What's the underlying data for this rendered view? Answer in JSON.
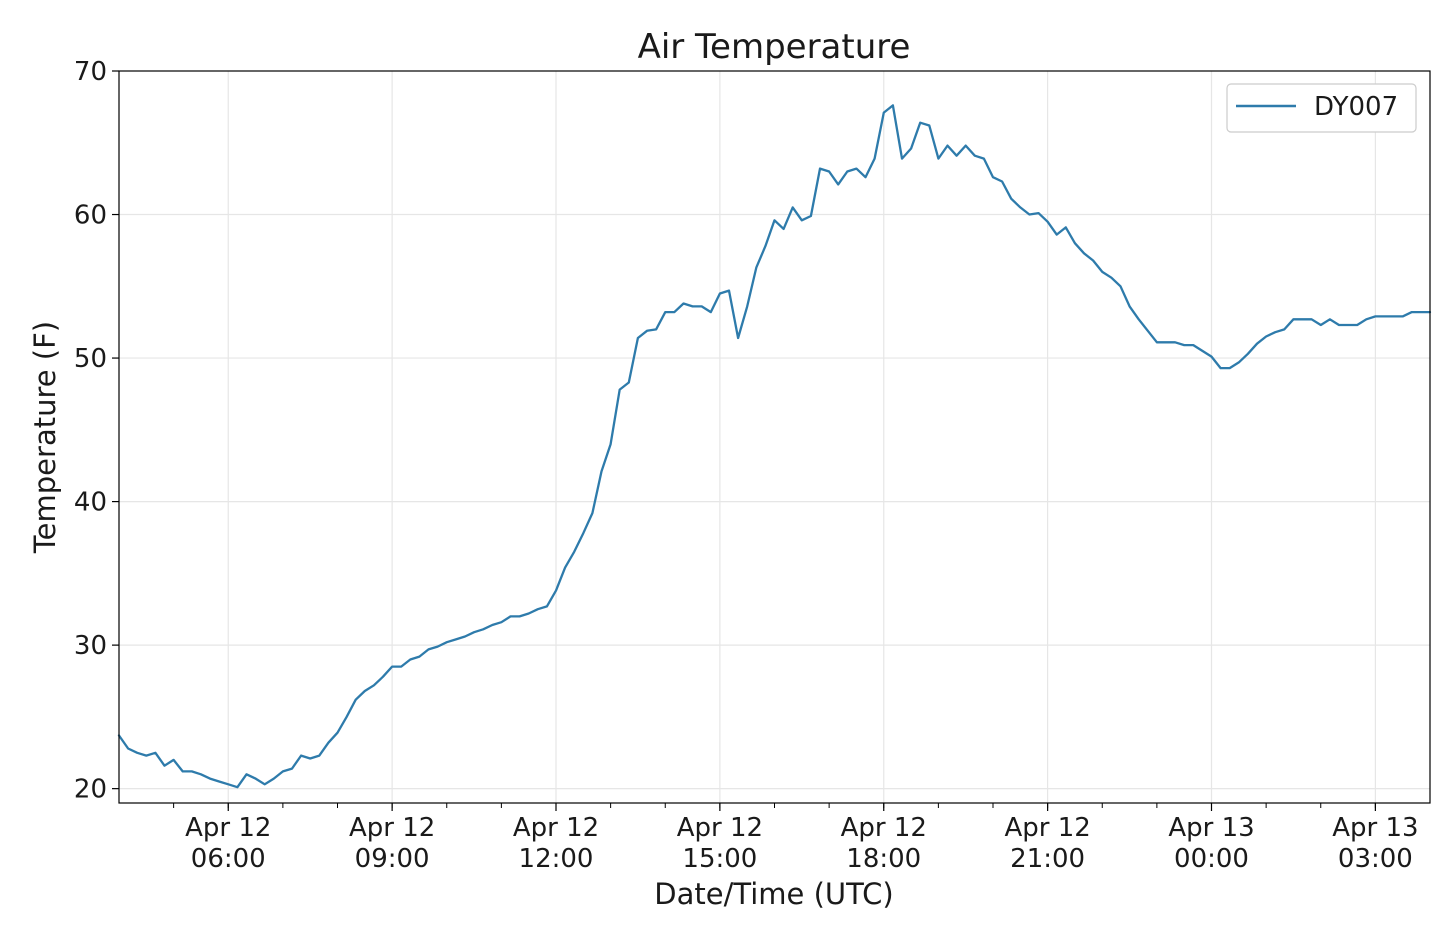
{
  "chart_data": {
    "type": "line",
    "title": "Air Temperature",
    "xlabel": "Date/Time (UTC)",
    "ylabel": "Temperature (F)",
    "ylim": [
      19,
      70
    ],
    "xlim": [
      "2019-04-12 04:00",
      "2019-04-13 04:00"
    ],
    "y_ticks": [
      20,
      30,
      40,
      50,
      60,
      70
    ],
    "x_ticks": [
      {
        "line1": "Apr 12",
        "line2": "06:00"
      },
      {
        "line1": "Apr 12",
        "line2": "09:00"
      },
      {
        "line1": "Apr 12",
        "line2": "12:00"
      },
      {
        "line1": "Apr 12",
        "line2": "15:00"
      },
      {
        "line1": "Apr 12",
        "line2": "18:00"
      },
      {
        "line1": "Apr 12",
        "line2": "21:00"
      },
      {
        "line1": "Apr 13",
        "line2": "00:00"
      },
      {
        "line1": "Apr 13",
        "line2": "03:00"
      }
    ],
    "grid": true,
    "legend_position": "top-right",
    "colors": {
      "series": "#2e7bab",
      "grid": "#e6e6e6",
      "axes": "#000000"
    },
    "series": [
      {
        "name": "DY007",
        "x": [
          "04:00",
          "04:10",
          "04:20",
          "04:30",
          "04:40",
          "04:50",
          "05:00",
          "05:10",
          "05:20",
          "05:30",
          "05:40",
          "05:50",
          "06:00",
          "06:10",
          "06:20",
          "06:30",
          "06:40",
          "06:50",
          "07:00",
          "07:10",
          "07:20",
          "07:30",
          "07:40",
          "07:50",
          "08:00",
          "08:10",
          "08:20",
          "08:30",
          "08:40",
          "08:50",
          "09:00",
          "09:10",
          "09:20",
          "09:30",
          "09:40",
          "09:50",
          "10:00",
          "10:10",
          "10:20",
          "10:30",
          "10:40",
          "10:50",
          "11:00",
          "11:10",
          "11:20",
          "11:30",
          "11:40",
          "11:50",
          "12:00",
          "12:10",
          "12:20",
          "12:30",
          "12:40",
          "12:50",
          "13:00",
          "13:10",
          "13:20",
          "13:30",
          "13:40",
          "13:50",
          "14:00",
          "14:10",
          "14:20",
          "14:30",
          "14:40",
          "14:50",
          "15:00",
          "15:10",
          "15:20",
          "15:30",
          "15:40",
          "15:50",
          "16:00",
          "16:10",
          "16:20",
          "16:30",
          "16:40",
          "16:50",
          "17:00",
          "17:10",
          "17:20",
          "17:30",
          "17:40",
          "17:50",
          "18:00",
          "18:10",
          "18:20",
          "18:30",
          "18:40",
          "18:50",
          "19:00",
          "19:10",
          "19:20",
          "19:30",
          "19:40",
          "19:50",
          "20:00",
          "20:10",
          "20:20",
          "20:30",
          "20:40",
          "20:50",
          "21:00",
          "21:10",
          "21:20",
          "21:30",
          "21:40",
          "21:50",
          "22:00",
          "22:10",
          "22:20",
          "22:30",
          "22:40",
          "22:50",
          "23:00",
          "23:10",
          "23:20",
          "23:30",
          "23:40",
          "23:50",
          "00:00",
          "00:10",
          "00:20",
          "00:30",
          "00:40",
          "00:50",
          "01:00",
          "01:10",
          "01:20",
          "01:30",
          "01:40",
          "01:50",
          "02:00",
          "02:10",
          "02:20",
          "02:30",
          "02:40",
          "02:50",
          "03:00",
          "03:10",
          "03:20",
          "03:30",
          "03:40",
          "03:50",
          "04:00"
        ],
        "values": [
          23.7,
          22.8,
          22.5,
          22.3,
          22.5,
          21.6,
          22.0,
          21.2,
          21.2,
          21.0,
          20.7,
          20.5,
          20.3,
          20.1,
          21.0,
          20.7,
          20.3,
          20.7,
          21.2,
          21.4,
          22.3,
          22.1,
          22.3,
          23.2,
          23.9,
          25.0,
          26.2,
          26.8,
          27.2,
          27.8,
          28.5,
          28.5,
          29.0,
          29.2,
          29.7,
          29.9,
          30.2,
          30.4,
          30.6,
          30.9,
          31.1,
          31.4,
          31.6,
          32.0,
          32.0,
          32.2,
          32.5,
          32.7,
          33.8,
          35.4,
          36.5,
          37.8,
          39.2,
          42.1,
          44.0,
          47.8,
          48.3,
          51.4,
          51.9,
          52.0,
          53.2,
          53.2,
          53.8,
          53.6,
          53.6,
          53.2,
          54.5,
          54.7,
          51.4,
          53.6,
          56.3,
          57.8,
          59.6,
          59.0,
          60.5,
          59.6,
          59.9,
          63.2,
          63.0,
          62.1,
          63.0,
          63.2,
          62.6,
          63.9,
          67.1,
          67.6,
          63.9,
          64.6,
          66.4,
          66.2,
          63.9,
          64.8,
          64.1,
          64.8,
          64.1,
          63.9,
          62.6,
          62.3,
          61.1,
          60.5,
          60.0,
          60.1,
          59.5,
          58.6,
          59.1,
          58.0,
          57.3,
          56.8,
          56.0,
          55.6,
          55.0,
          53.6,
          52.7,
          51.9,
          51.1,
          51.1,
          51.1,
          50.9,
          50.9,
          50.5,
          50.1,
          49.3,
          49.3,
          49.7,
          50.3,
          51.0,
          51.5,
          51.8,
          52.0,
          52.7,
          52.7,
          52.7,
          52.3,
          52.7,
          52.3,
          52.3,
          52.3,
          52.7,
          52.9,
          52.9,
          52.9,
          52.9,
          53.2,
          53.2,
          53.2
        ]
      }
    ]
  }
}
